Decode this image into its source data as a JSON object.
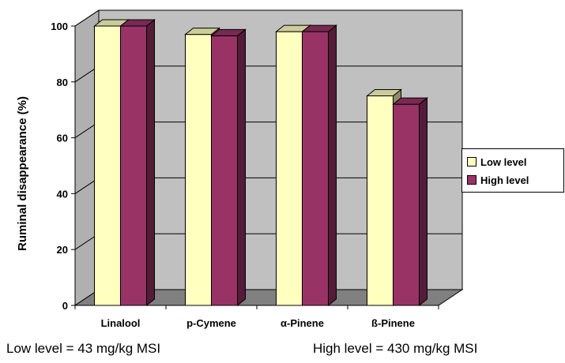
{
  "chart_data": {
    "type": "bar",
    "title": "",
    "xlabel": "",
    "ylabel": "Ruminal disappearance (%)",
    "ylim": [
      0,
      100
    ],
    "yticks": [
      "0",
      "20",
      "40",
      "60",
      "80",
      "100"
    ],
    "categories": [
      "Linalool",
      "p-Cymene",
      "α-Pinene",
      "ß-Pinene"
    ],
    "series": [
      {
        "name": "Low level",
        "color": "#FFFFC0",
        "values": [
          100,
          97,
          98,
          75
        ]
      },
      {
        "name": "High level",
        "color": "#993366",
        "values": [
          100,
          96.5,
          98,
          72
        ]
      }
    ],
    "grid": true,
    "three_d": true,
    "legend_position": "right",
    "plot_background": "#C0C0C0"
  },
  "notes": {
    "low": "Low level = 43 mg/kg MSI",
    "high": "High level = 430 mg/kg MSI"
  }
}
